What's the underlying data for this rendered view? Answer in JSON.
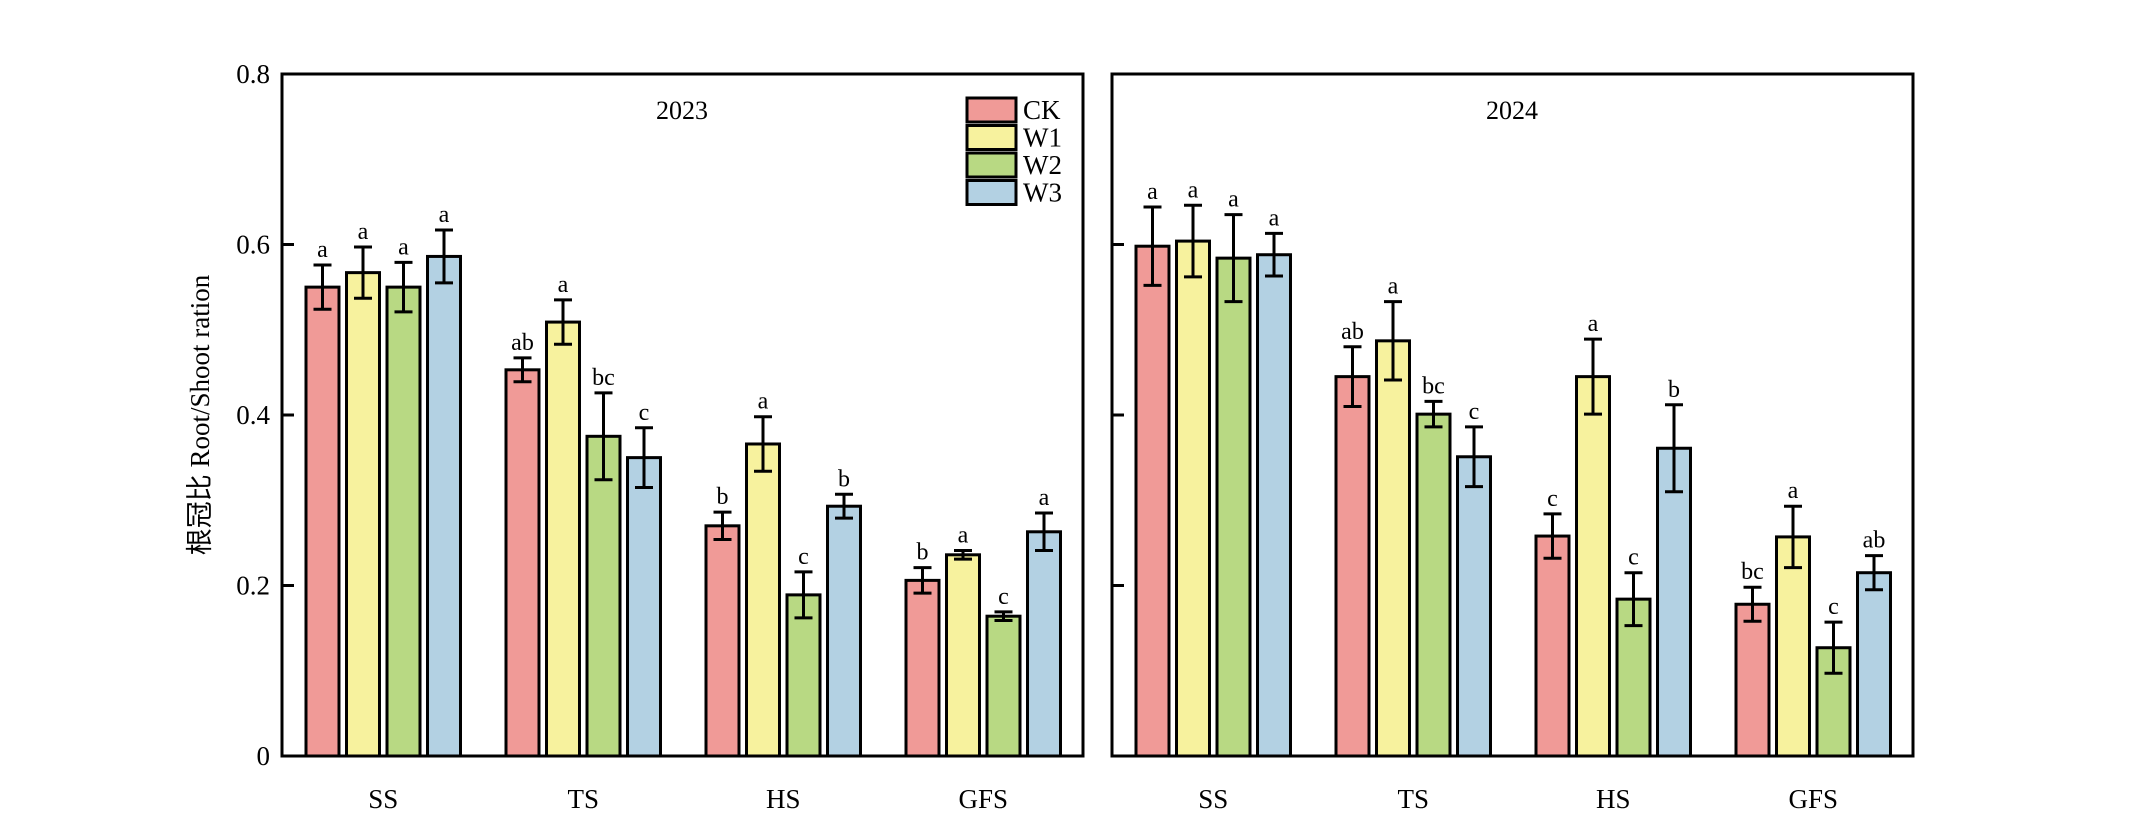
{
  "chart_data": {
    "type": "bar",
    "ylabel": "根冠比 Root/Shoot ration",
    "xlabel": "",
    "ylim": [
      0,
      0.8
    ],
    "yticks": [
      0,
      0.2,
      0.4,
      0.6,
      0.8
    ],
    "ytick_labels": [
      "0",
      "0.2",
      "0.4",
      "0.6",
      "0.8"
    ],
    "grid": false,
    "legend": {
      "placement": "top-right of first panel",
      "entries": [
        "CK",
        "W1",
        "W2",
        "W3"
      ]
    },
    "series_colors": {
      "CK": "#F09A97",
      "W1": "#F7F29E",
      "W2": "#B8D983",
      "W3": "#B3D1E3"
    },
    "categories": [
      "SS",
      "TS",
      "HS",
      "GFS"
    ],
    "panels": [
      {
        "title": "2023",
        "series": [
          {
            "name": "CK",
            "values": [
              0.55,
              0.453,
              0.27,
              0.206
            ],
            "errors": [
              0.026,
              0.014,
              0.016,
              0.015
            ],
            "letters": [
              "a",
              "ab",
              "b",
              "b"
            ]
          },
          {
            "name": "W1",
            "values": [
              0.567,
              0.509,
              0.366,
              0.236
            ],
            "errors": [
              0.03,
              0.026,
              0.032,
              0.005
            ],
            "letters": [
              "a",
              "a",
              "a",
              "a"
            ]
          },
          {
            "name": "W2",
            "values": [
              0.55,
              0.375,
              0.189,
              0.164
            ],
            "errors": [
              0.029,
              0.051,
              0.027,
              0.005
            ],
            "letters": [
              "a",
              "bc",
              "c",
              "c"
            ]
          },
          {
            "name": "W3",
            "values": [
              0.586,
              0.35,
              0.293,
              0.263
            ],
            "errors": [
              0.031,
              0.035,
              0.014,
              0.022
            ],
            "letters": [
              "a",
              "c",
              "b",
              "a"
            ]
          }
        ]
      },
      {
        "title": "2024",
        "series": [
          {
            "name": "CK",
            "values": [
              0.598,
              0.445,
              0.258,
              0.178
            ],
            "errors": [
              0.046,
              0.035,
              0.026,
              0.02
            ],
            "letters": [
              "a",
              "ab",
              "c",
              "bc"
            ]
          },
          {
            "name": "W1",
            "values": [
              0.604,
              0.487,
              0.445,
              0.257
            ],
            "errors": [
              0.042,
              0.046,
              0.044,
              0.036
            ],
            "letters": [
              "a",
              "a",
              "a",
              "a"
            ]
          },
          {
            "name": "W2",
            "values": [
              0.584,
              0.401,
              0.184,
              0.127
            ],
            "errors": [
              0.051,
              0.015,
              0.031,
              0.03
            ],
            "letters": [
              "a",
              "bc",
              "c",
              "c"
            ]
          },
          {
            "name": "W3",
            "values": [
              0.588,
              0.351,
              0.361,
              0.215
            ],
            "errors": [
              0.025,
              0.035,
              0.051,
              0.02
            ],
            "letters": [
              "a",
              "c",
              "b",
              "ab"
            ]
          }
        ]
      }
    ]
  }
}
